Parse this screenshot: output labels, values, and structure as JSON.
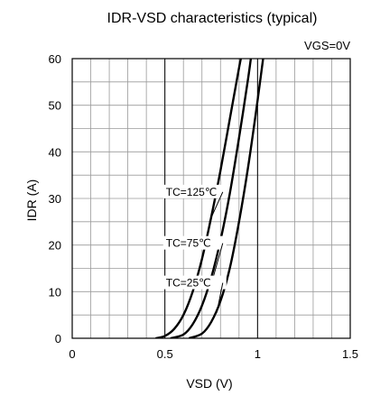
{
  "chart_data": {
    "type": "line",
    "title": "IDR-VSD characteristics (typical)",
    "subtitle": "VGS=0V",
    "xlabel": "VSD (V)",
    "ylabel": "IDR (A)",
    "xlim": [
      0,
      1.5
    ],
    "ylim": [
      0,
      60
    ],
    "x_ticks": [
      "0",
      "0.5",
      "1",
      "1.5"
    ],
    "y_ticks": [
      "0",
      "10",
      "20",
      "30",
      "40",
      "50",
      "60"
    ],
    "grid": true,
    "series": [
      {
        "name": "TC=125℃",
        "x": [
          0.45,
          0.5,
          0.55,
          0.6,
          0.65,
          0.7,
          0.75,
          0.8,
          0.85,
          0.9,
          0.92
        ],
        "y": [
          0,
          0.5,
          2.0,
          5.0,
          10.0,
          17.0,
          26.0,
          36.0,
          47.0,
          58.0,
          62.0
        ]
      },
      {
        "name": "TC=75℃",
        "x": [
          0.53,
          0.6,
          0.65,
          0.7,
          0.75,
          0.8,
          0.85,
          0.9,
          0.95,
          0.97
        ],
        "y": [
          0,
          0.8,
          3.0,
          7.0,
          13.0,
          21.0,
          31.0,
          43.0,
          56.0,
          62.0
        ]
      },
      {
        "name": "TC=25℃",
        "x": [
          0.63,
          0.7,
          0.75,
          0.8,
          0.85,
          0.9,
          0.95,
          1.0,
          1.03
        ],
        "y": [
          0,
          1.0,
          3.5,
          8.0,
          15.0,
          25.0,
          37.0,
          51.0,
          60.0
        ]
      }
    ],
    "annotations": [
      {
        "text": "TC=125℃",
        "series": 0,
        "label_pos": [
          0.52,
          31
        ],
        "target": [
          0.74,
          25
        ]
      },
      {
        "text": "TC=75℃",
        "series": 1,
        "label_pos": [
          0.52,
          20
        ],
        "target": [
          0.76,
          13
        ]
      },
      {
        "text": "TC=25℃",
        "series": 2,
        "label_pos": [
          0.52,
          11.5
        ],
        "target": [
          0.78,
          5.5
        ]
      }
    ]
  }
}
